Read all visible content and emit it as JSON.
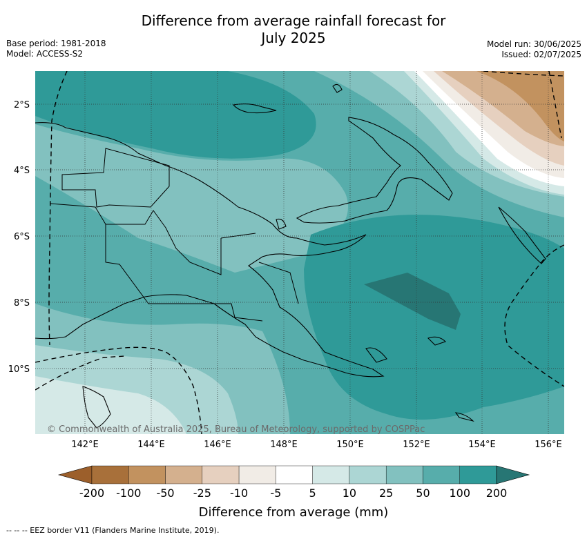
{
  "title_line1": "Difference from average rainfall forecast for",
  "title_line2": "July 2025",
  "meta_left": [
    "Base period: 1981-2018",
    "Model: ACCESS-S2"
  ],
  "meta_right": [
    "Model run: 30/06/2025",
    "Issued: 02/07/2025"
  ],
  "lat_labels": [
    "2°S",
    "4°S",
    "6°S",
    "8°S",
    "10°S"
  ],
  "lon_labels": [
    "142°E",
    "144°E",
    "146°E",
    "148°E",
    "150°E",
    "152°E",
    "154°E",
    "156°E"
  ],
  "copyright": "© Commonwealth of Australia 2025, Bureau of Meteorology, supported by COSPPac",
  "colorbar": {
    "title": "Difference from average (mm)",
    "ticks": [
      "-200",
      "-100",
      "-50",
      "-25",
      "-10",
      "-5",
      "5",
      "10",
      "25",
      "50",
      "100",
      "200"
    ],
    "colors": [
      "#a8703a",
      "#c2925f",
      "#d4b08e",
      "#e6d0bf",
      "#f1ece6",
      "#ffffff",
      "#d5e9e7",
      "#acd6d4",
      "#82c1bf",
      "#57adab",
      "#2f9a98",
      "#277674"
    ],
    "under_color": "#9c5f2b",
    "over_color": "#1e6f6d"
  },
  "footer": "--  --  -- EEZ border V11 (Flanders Marine Institute, 2019)."
}
